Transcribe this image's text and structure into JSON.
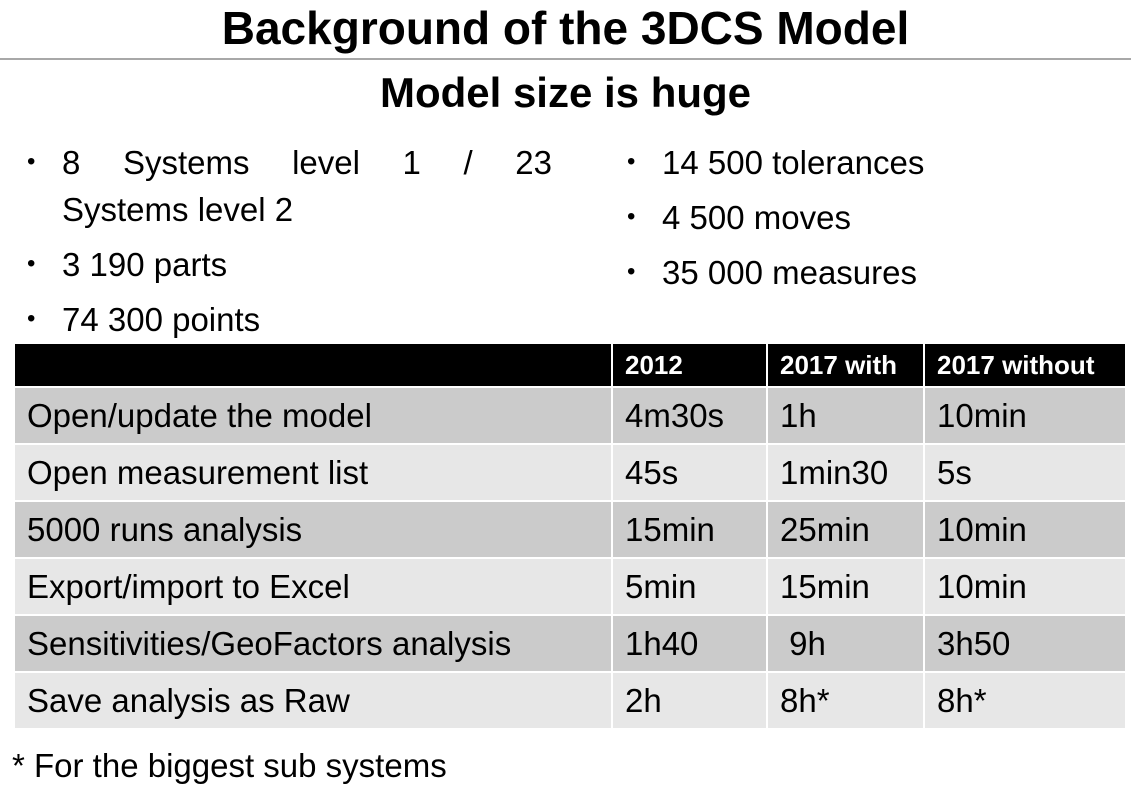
{
  "slide": {
    "title": "Background of the 3DCS Model",
    "subtitle": "Model size is huge",
    "bullet_glyph": "•",
    "left_bullets": [
      "8 Systems level 1 / 23",
      "Systems level 2",
      "3 190 parts",
      "74 300 points"
    ],
    "right_bullets": [
      "14 500 tolerances",
      "4 500 moves",
      "35 000 measures"
    ],
    "table": {
      "headers": [
        "",
        "2012",
        "2017 with",
        "2017 without"
      ],
      "rows": [
        [
          "Open/update the model",
          "4m30s",
          "1h",
          "10min"
        ],
        [
          "Open measurement list",
          "45s",
          "1min30",
          "5s"
        ],
        [
          "5000 runs analysis",
          "15min",
          "25min",
          "10min"
        ],
        [
          "Export/import to Excel",
          "5min",
          "15min",
          "10min"
        ],
        [
          "Sensitivities/GeoFactors analysis",
          "1h40",
          " 9h",
          "3h50"
        ],
        [
          "Save analysis as Raw",
          "2h",
          "8h*",
          "8h*"
        ]
      ]
    },
    "footnote": "* For the biggest sub systems",
    "colors": {
      "header_bg": "#000000",
      "row_dark": "#cbcbcb",
      "row_light": "#e7e7e7",
      "rule": "#a8a8a8"
    }
  }
}
